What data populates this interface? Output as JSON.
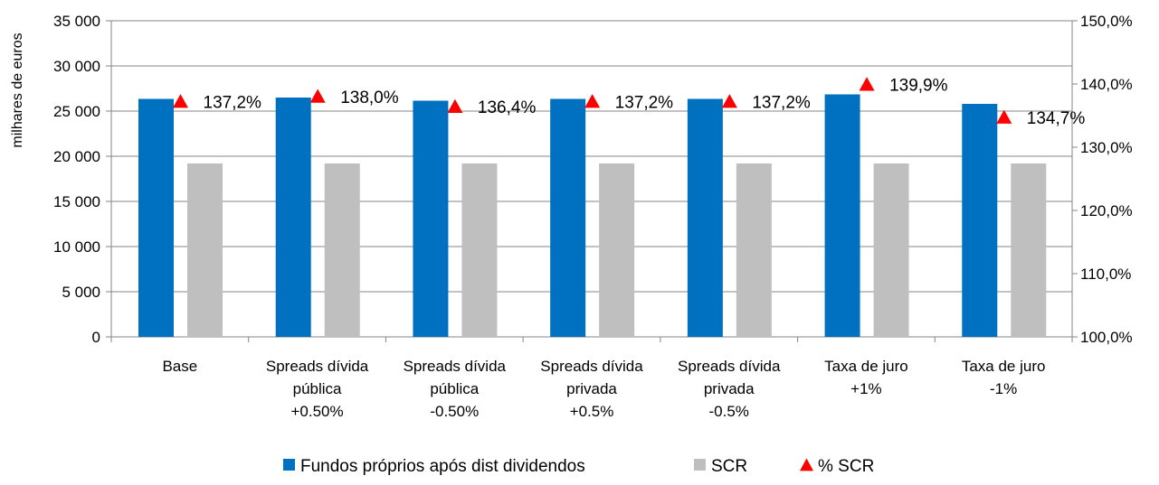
{
  "chart_data": {
    "type": "bar",
    "categories": [
      [
        "Base"
      ],
      [
        "Spreads dívida",
        "pública",
        "+0.50%"
      ],
      [
        "Spreads dívida",
        "pública",
        "-0.50%"
      ],
      [
        "Spreads dívida",
        "privada",
        "+0.5%"
      ],
      [
        "Spreads dívida",
        "privada",
        "-0.5%"
      ],
      [
        "Taxa de juro",
        "+1%"
      ],
      [
        "Taxa de juro",
        "-1%"
      ]
    ],
    "series": [
      {
        "name": "Fundos próprios após dist dividendos",
        "type": "bar",
        "axis": "left",
        "color": "#0070C0",
        "values": [
          26350,
          26500,
          26150,
          26350,
          26350,
          26850,
          25800
        ]
      },
      {
        "name": "SCR",
        "type": "bar",
        "axis": "left",
        "color": "#BFBFBF",
        "values": [
          19200,
          19200,
          19200,
          19200,
          19200,
          19200,
          19200
        ]
      },
      {
        "name": "% SCR",
        "type": "marker",
        "axis": "right",
        "color": "#FF0000",
        "marker": "triangle",
        "values": [
          137.2,
          138.0,
          136.4,
          137.2,
          137.2,
          139.9,
          134.7
        ],
        "labels": [
          "137,2%",
          "138,0%",
          "136,4%",
          "137,2%",
          "137,2%",
          "139,9%",
          "134,7%"
        ]
      }
    ],
    "ylabel": "milhares de euros",
    "ylim": [
      0,
      35000
    ],
    "yticks": [
      0,
      5000,
      10000,
      15000,
      20000,
      25000,
      30000,
      35000
    ],
    "ytick_labels": [
      "0",
      "5 000",
      "10 000",
      "15 000",
      "20 000",
      "25 000",
      "30 000",
      "35 000"
    ],
    "y2lim": [
      100,
      150
    ],
    "y2ticks": [
      100,
      110,
      120,
      130,
      140,
      150
    ],
    "y2tick_labels": [
      "100,0%",
      "110,0%",
      "120,0%",
      "130,0%",
      "140,0%",
      "150,0%"
    ],
    "grid": true,
    "legend": "bottom"
  }
}
